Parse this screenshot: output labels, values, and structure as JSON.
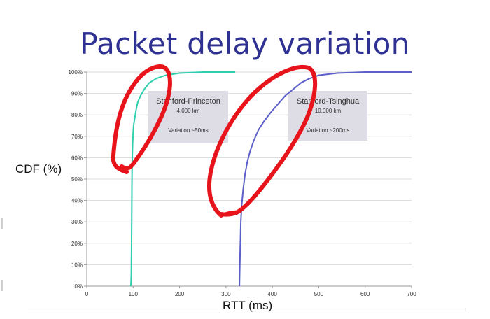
{
  "slide": {
    "title": "Packet delay variation"
  },
  "chart_data": {
    "type": "line",
    "xlabel": "RTT (ms)",
    "ylabel": "CDF (%)",
    "xlim": [
      0,
      700
    ],
    "ylim": [
      0,
      100
    ],
    "x_ticks": [
      "0",
      "100",
      "200",
      "300",
      "400",
      "500",
      "600",
      "700"
    ],
    "y_ticks": [
      "0%",
      "10%",
      "20%",
      "30%",
      "40%",
      "50%",
      "60%",
      "70%",
      "80%",
      "90%",
      "100%"
    ],
    "grid": true,
    "series": [
      {
        "color": "#2ecfae",
        "x": [
          95,
          96,
          96.5,
          97,
          97.5,
          98,
          99,
          100,
          101,
          103,
          106,
          110,
          116,
          124,
          135,
          150,
          170,
          200,
          250,
          320
        ],
        "y": [
          0,
          5,
          20,
          35,
          50,
          60,
          67,
          72,
          75,
          78,
          82,
          86,
          89,
          92,
          95,
          97,
          98.5,
          99.5,
          100,
          100
        ]
      },
      {
        "color": "#5b5fc7",
        "x": [
          329,
          330,
          331,
          332,
          334,
          337,
          341,
          346,
          352,
          360,
          370,
          382,
          396,
          412,
          428,
          445,
          462,
          480,
          500,
          540,
          600,
          700
        ],
        "y": [
          0,
          10,
          20,
          30,
          38,
          45,
          52,
          58,
          63,
          68,
          73,
          77,
          81,
          85,
          89,
          92,
          95,
          97,
          98.5,
          99.5,
          100,
          100
        ]
      }
    ],
    "annotations": [
      {
        "title": "Stanford-Princeton",
        "distance": "4,000 km",
        "variation": "Variation ~50ms"
      },
      {
        "title": "Stanford-Tsinghua",
        "distance": "10,000 km",
        "variation": "Variation ~200ms"
      }
    ]
  },
  "colors": {
    "title": "#2e3192",
    "ink": "#e8141c",
    "box": "#dedde6",
    "grid": "#d9d9d9"
  }
}
